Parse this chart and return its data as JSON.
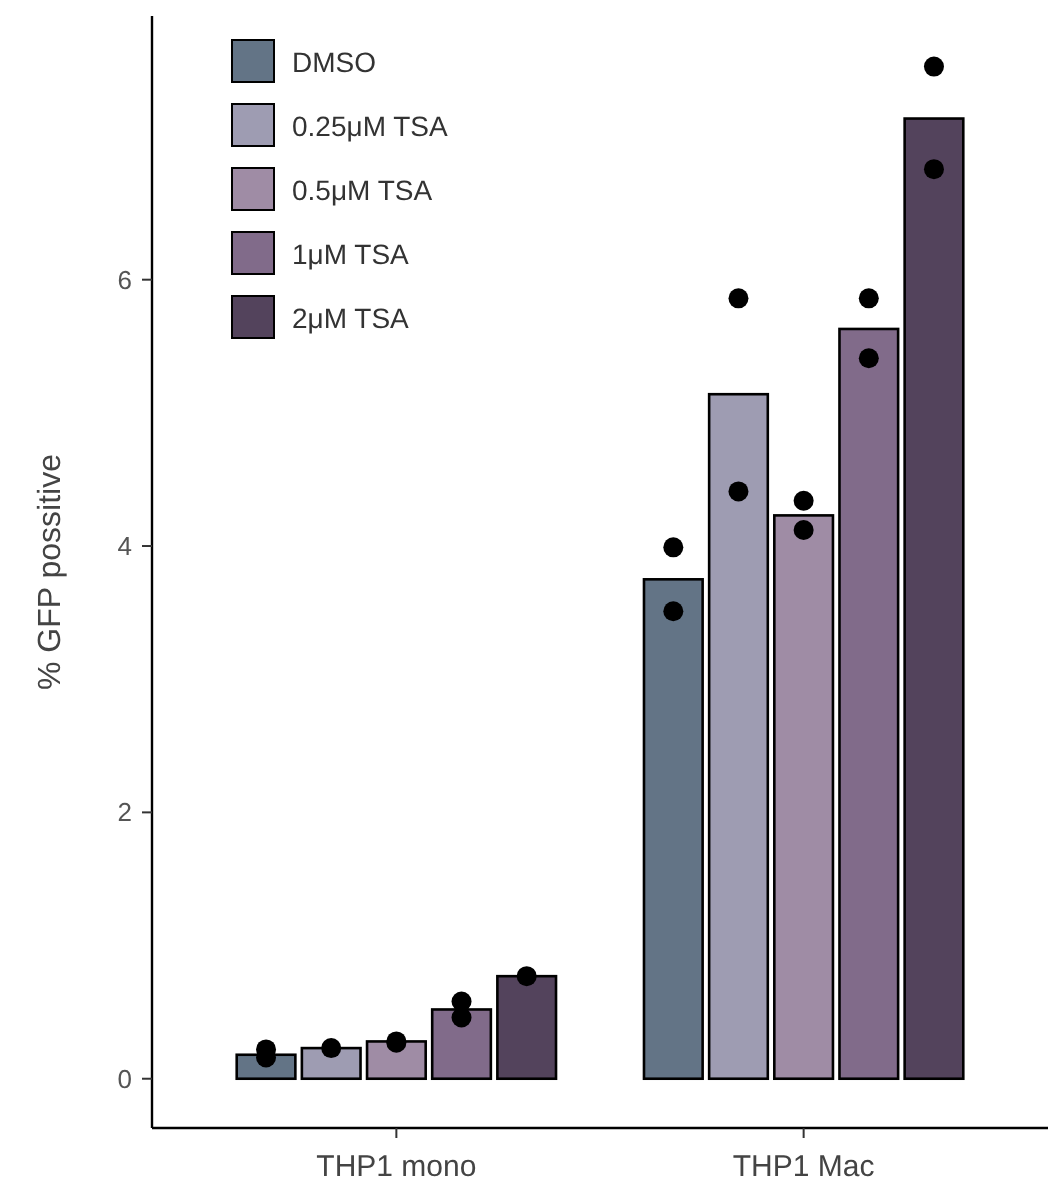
{
  "chart_data": {
    "type": "bar",
    "ylabel": "% GFP possitive",
    "categories": [
      "THP1 mono",
      "THP1 Mac"
    ],
    "series": [
      {
        "name": "DMSO",
        "color": "#637486",
        "values": [
          0.18,
          3.75
        ]
      },
      {
        "name": "0.25μM TSA",
        "color": "#9e9cb2",
        "values": [
          0.23,
          5.14
        ]
      },
      {
        "name": "0.5μM TSA",
        "color": "#9f8ca5",
        "values": [
          0.28,
          4.23
        ]
      },
      {
        "name": "1μM TSA",
        "color": "#816b8a",
        "values": [
          0.52,
          5.63
        ]
      },
      {
        "name": "2μM TSA",
        "color": "#53435c",
        "values": [
          0.77,
          7.21
        ]
      },
      {
        "type": "scatter",
        "color": "#000000",
        "x": [
          "THP1 mono",
          "THP1 Mac"
        ],
        "values": [
          0.22,
          3.99
        ]
      },
      {
        "type": "scatter",
        "color": "#000000",
        "x": [
          "THP1 mono",
          "THP1 Mac"
        ],
        "values": [
          0.23,
          5.86
        ]
      },
      {
        "type": "scatter",
        "color": "#000000",
        "x": [
          "THP1 mono",
          "THP1 Mac"
        ],
        "values": [
          0.28,
          4.34
        ]
      },
      {
        "type": "scatter",
        "color": "#000000",
        "x": [
          "THP1 mono",
          "THP1 Mac"
        ],
        "values": [
          0.58,
          5.86
        ]
      },
      {
        "type": "scatter",
        "color": "#000000",
        "x": [
          "THP1 mono",
          "THP1 Mac"
        ],
        "values": [
          0.77,
          7.6
        ]
      },
      {
        "type": "scatter",
        "color": "#000000",
        "x": [
          "THP1 mono",
          "THP1 Mac"
        ],
        "values": [
          0.16,
          3.51
        ]
      },
      {
        "type": "scatter",
        "color": "#000000",
        "x": [
          "THP1 Mac"
        ],
        "values": [
          4.41
        ]
      },
      {
        "type": "scatter",
        "color": "#000000",
        "x": [
          "THP1 mono",
          "THP1 Mac"
        ],
        "values": [
          0.27,
          4.12
        ]
      },
      {
        "type": "scatter",
        "color": "#000000",
        "x": [
          "THP1 mono",
          "THP1 Mac"
        ],
        "values": [
          0.46,
          5.41
        ]
      },
      {
        "type": "scatter",
        "color": "#000000",
        "x": [
          "THP1 Mac"
        ],
        "values": [
          6.83
        ]
      }
    ],
    "ylim": [
      -0.37,
      7.98
    ],
    "yticks": [
      0,
      2,
      4,
      6
    ],
    "grid": false,
    "legend": "top left",
    "marker": "circle"
  }
}
